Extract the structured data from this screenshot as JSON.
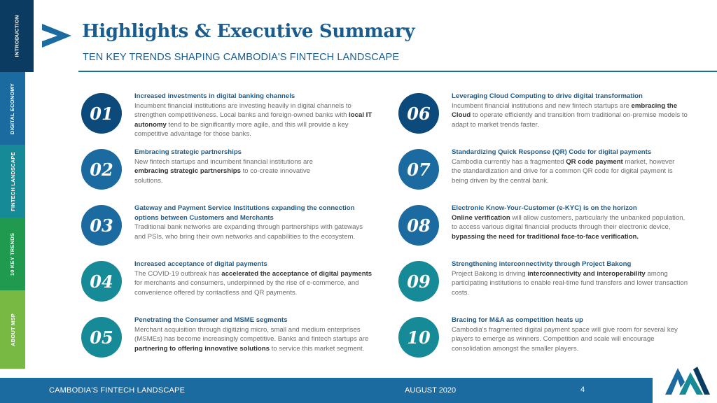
{
  "sidebar": {
    "tabs": [
      {
        "label": "INTRODUCTION"
      },
      {
        "label": "DIGITAL ECONOMY"
      },
      {
        "label": "FINTECH LANDSCAPE"
      },
      {
        "label": "10 KEY TRENDS"
      },
      {
        "label": "ABOUT MSP"
      }
    ]
  },
  "header": {
    "title": "Highlights & Executive Summary",
    "subtitle": "TEN KEY TRENDS SHAPING CAMBODIA'S FINTECH LANDSCAPE",
    "icon": "chevron-right-icon"
  },
  "trends": [
    {
      "number": "01",
      "heading": "Increased investments in digital banking channels",
      "p1": "Incumbent financial institutions are investing heavily in digital channels to strengthen competitiveness. Local banks and foreign-owned banks with",
      "b1": "local IT autonomy",
      "p2": "tend to be significantly more agile, and this will provide a key competitive advantage for those banks."
    },
    {
      "number": "02",
      "heading": "Embracing strategic partnerships",
      "p1": "New fintech startups and incumbent financial institutions are",
      "b1": "embracing strategic partnerships",
      "p2": "to co-create innovative solutions."
    },
    {
      "number": "03",
      "heading": "Gateway and Payment Service Institutions expanding the connection options between Customers and Merchants",
      "p1": "Traditional bank networks are expanding through partnerships with gateways and PSIs, who bring their own networks and capabilities to the ecosystem."
    },
    {
      "number": "04",
      "heading": "Increased acceptance of digital payments",
      "p1": "The COVID-19 outbreak has",
      "b1": "accelerated the acceptance of digital payments",
      "p2": "for merchants and consumers, underpinned by the rise of e-commerce, and convenience offered by contactless and QR payments."
    },
    {
      "number": "05",
      "heading": "Penetrating the Consumer and MSME segments",
      "p1": "Merchant acquisition through digitizing micro, small and medium enterprises (MSMEs) has become increasingly competitive.  Banks and fintech startups are",
      "b1": "partnering to offering innovative solutions",
      "p2": "to service this market segment."
    },
    {
      "number": "06",
      "heading": "Leveraging Cloud Computing to drive digital transformation",
      "p1": "Incumbent financial institutions and new fintech startups are",
      "b1": "embracing the Cloud",
      "p2": "to operate efficiently and transition from traditional on-premise models to adapt to market trends faster."
    },
    {
      "number": "07",
      "heading": "Standardizing Quick Response (QR) Code for digital payments",
      "p1": "Cambodia currently has a fragmented",
      "b1": "QR code payment",
      "p2": "market, however the standardization and drive for a common QR code for digital payment is being driven by the central bank."
    },
    {
      "number": "08",
      "heading": "Electronic Know-Your-Customer (e-KYC) is on the horizon",
      "b0": "Online verification",
      "p1": "will allow customers, particularly the unbanked population, to access various digital financial products through their electronic device,",
      "b1": "bypassing the need for traditional face-to-face verification."
    },
    {
      "number": "09",
      "heading": "Strengthening interconnectivity through Project Bakong",
      "p1": "Project Bakong is driving",
      "b1": "interconnectivity and interoperability",
      "p2": "among participating institutions to enable real-time fund transfers and lower transaction costs."
    },
    {
      "number": "10",
      "heading": "Bracing for M&A as competition heats up",
      "p1": "Cambodia's fragmented digital payment space will give room for several key players to emerge as winners. Competition and scale will encourage consolidation amongst the smaller players."
    }
  ],
  "footer": {
    "left": "CAMBODIA'S FINTECH LANDSCAPE",
    "date": "AUGUST 2020",
    "page": "4",
    "logo": "msp-logo-icon"
  },
  "colors": {
    "primary": "#1b6aa0",
    "dark": "#0b3b60",
    "teal": "#168a96",
    "green": "#1f9a4f",
    "light_green": "#78b943"
  }
}
